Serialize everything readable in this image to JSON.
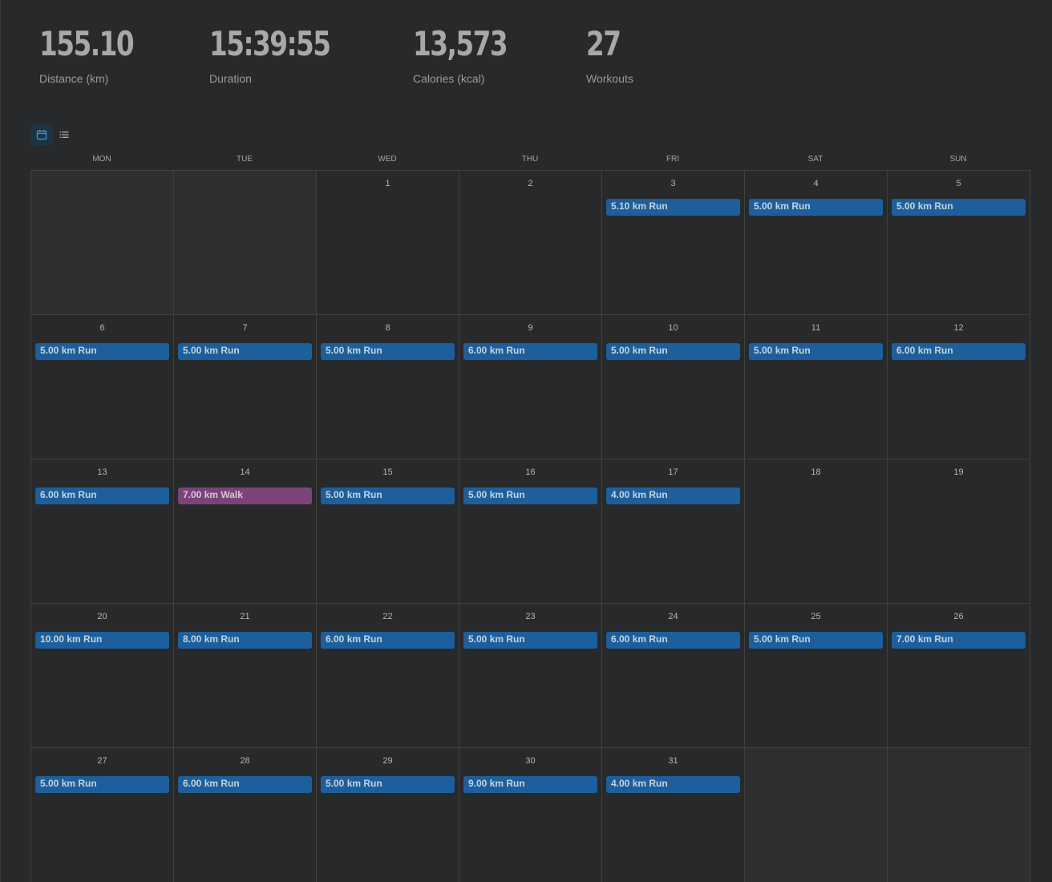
{
  "stats": {
    "distance": {
      "value": "155.10",
      "label": "Distance (km)"
    },
    "duration": {
      "value": "15:39:55",
      "label": "Duration"
    },
    "calories": {
      "value": "13,573",
      "label": "Calories (kcal)"
    },
    "workouts": {
      "value": "27",
      "label": "Workouts"
    }
  },
  "view_toggle": {
    "calendar_icon": "calendar-icon",
    "list_icon": "list-icon",
    "active": "calendar"
  },
  "colors": {
    "run": "#1c5f9c",
    "walk": "#7a4479",
    "background": "#28292b"
  },
  "calendar": {
    "weekdays": [
      "MON",
      "TUE",
      "WED",
      "THU",
      "FRI",
      "SAT",
      "SUN"
    ],
    "days": [
      {
        "num": "",
        "outside": true
      },
      {
        "num": "",
        "outside": true
      },
      {
        "num": "1"
      },
      {
        "num": "2"
      },
      {
        "num": "3",
        "event": {
          "label": "5.10 km Run",
          "type": "run"
        }
      },
      {
        "num": "4",
        "event": {
          "label": "5.00 km Run",
          "type": "run"
        }
      },
      {
        "num": "5",
        "event": {
          "label": "5.00 km Run",
          "type": "run"
        }
      },
      {
        "num": "6",
        "event": {
          "label": "5.00 km Run",
          "type": "run"
        }
      },
      {
        "num": "7",
        "event": {
          "label": "5.00 km Run",
          "type": "run"
        }
      },
      {
        "num": "8",
        "event": {
          "label": "5.00 km Run",
          "type": "run"
        }
      },
      {
        "num": "9",
        "event": {
          "label": "6.00 km Run",
          "type": "run"
        }
      },
      {
        "num": "10",
        "event": {
          "label": "5.00 km Run",
          "type": "run"
        }
      },
      {
        "num": "11",
        "event": {
          "label": "5.00 km Run",
          "type": "run"
        }
      },
      {
        "num": "12",
        "event": {
          "label": "6.00 km Run",
          "type": "run"
        }
      },
      {
        "num": "13",
        "event": {
          "label": "6.00 km Run",
          "type": "run"
        }
      },
      {
        "num": "14",
        "event": {
          "label": "7.00 km Walk",
          "type": "walk"
        }
      },
      {
        "num": "15",
        "event": {
          "label": "5.00 km Run",
          "type": "run"
        }
      },
      {
        "num": "16",
        "event": {
          "label": "5.00 km Run",
          "type": "run"
        }
      },
      {
        "num": "17",
        "event": {
          "label": "4.00 km Run",
          "type": "run"
        }
      },
      {
        "num": "18"
      },
      {
        "num": "19"
      },
      {
        "num": "20",
        "event": {
          "label": "10.00 km Run",
          "type": "run"
        }
      },
      {
        "num": "21",
        "event": {
          "label": "8.00 km Run",
          "type": "run"
        }
      },
      {
        "num": "22",
        "event": {
          "label": "6.00 km Run",
          "type": "run"
        }
      },
      {
        "num": "23",
        "event": {
          "label": "5.00 km Run",
          "type": "run"
        }
      },
      {
        "num": "24",
        "event": {
          "label": "6.00 km Run",
          "type": "run"
        }
      },
      {
        "num": "25",
        "event": {
          "label": "5.00 km Run",
          "type": "run"
        }
      },
      {
        "num": "26",
        "event": {
          "label": "7.00 km Run",
          "type": "run"
        }
      },
      {
        "num": "27",
        "event": {
          "label": "5.00 km Run",
          "type": "run"
        }
      },
      {
        "num": "28",
        "event": {
          "label": "6.00 km Run",
          "type": "run"
        }
      },
      {
        "num": "29",
        "event": {
          "label": "5.00 km Run",
          "type": "run"
        }
      },
      {
        "num": "30",
        "event": {
          "label": "9.00 km Run",
          "type": "run"
        }
      },
      {
        "num": "31",
        "event": {
          "label": "4.00 km Run",
          "type": "run"
        }
      },
      {
        "num": "",
        "outside": true
      },
      {
        "num": "",
        "outside": true
      }
    ]
  }
}
